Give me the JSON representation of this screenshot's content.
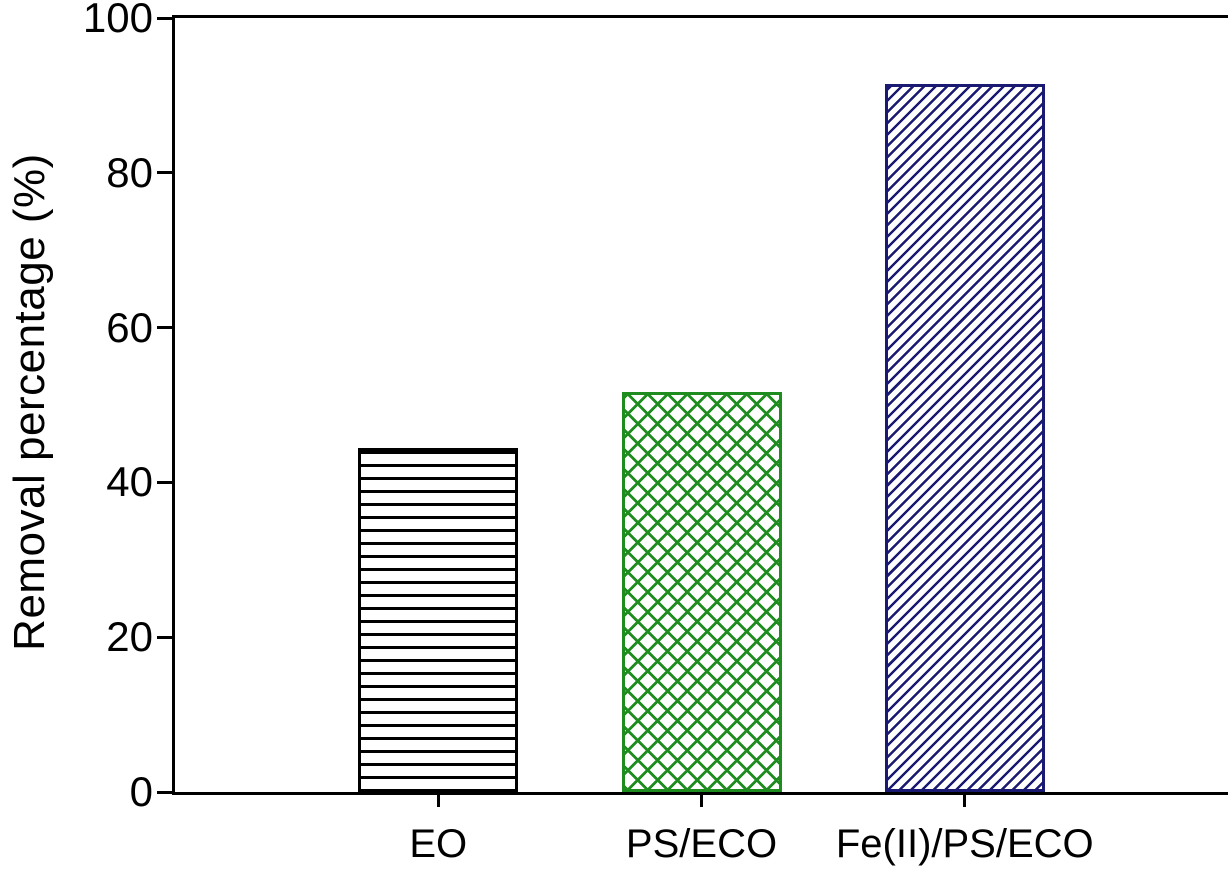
{
  "chart_data": {
    "type": "bar",
    "title": "",
    "xlabel": "",
    "ylabel": "Removal percentage (%)",
    "categories": [
      "EO",
      "PS/ECO",
      "Fe(II)/PS/ECO"
    ],
    "values": [
      44.5,
      51.7,
      91.5
    ],
    "ylim": [
      0,
      100
    ],
    "yticks": [
      0,
      20,
      40,
      60,
      80,
      100
    ],
    "grid": false,
    "legend": "none",
    "frame": "full-box",
    "background": "#ffffff",
    "axis_color": "#000000",
    "bars": [
      {
        "category": "EO",
        "value": 44.5,
        "color": "#000000",
        "fill": "#ffffff",
        "hatch": "horizontal-lines"
      },
      {
        "category": "PS/ECO",
        "value": 51.7,
        "color": "#1e8c1e",
        "fill": "#ffffff",
        "hatch": "diamond-crosshatch"
      },
      {
        "category": "Fe(II)/PS/ECO",
        "value": 91.5,
        "color": "#1a1a73",
        "fill": "#ffffff",
        "hatch": "diagonal-forward"
      }
    ]
  }
}
